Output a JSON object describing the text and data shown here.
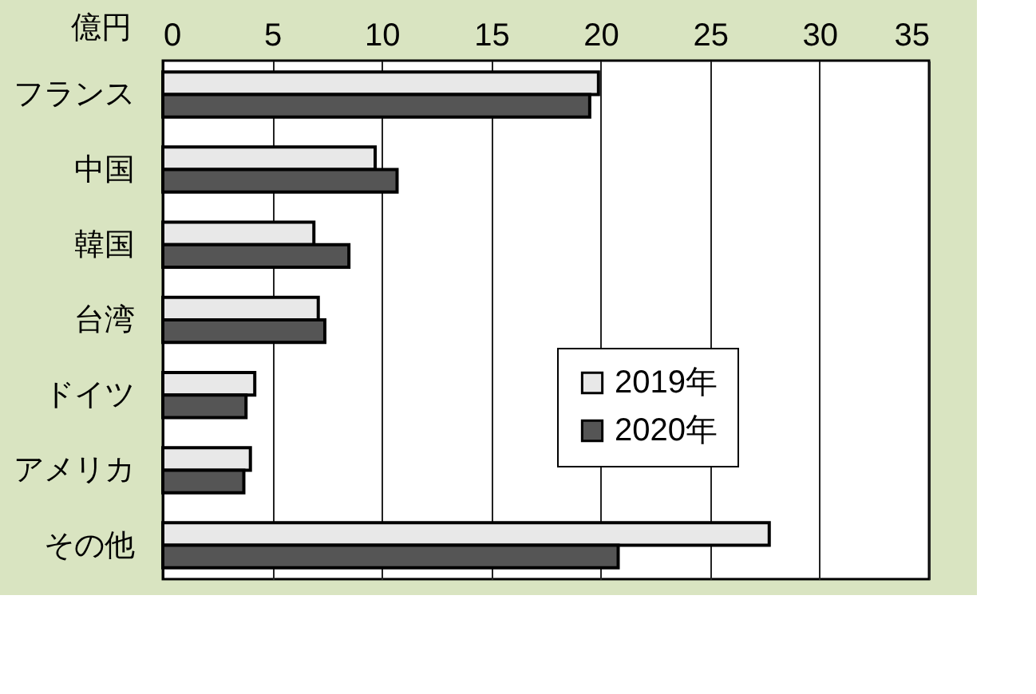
{
  "chart_data": {
    "type": "bar",
    "orientation": "horizontal",
    "xlabel": "億円",
    "categories": [
      "フランス",
      "中国",
      "韓国",
      "台湾",
      "ドイツ",
      "アメリカ",
      "その他"
    ],
    "series": [
      {
        "name": "2019年",
        "color": "#e8e8e8",
        "values": [
          19.9,
          9.7,
          6.9,
          7.1,
          4.2,
          4.0,
          27.7
        ]
      },
      {
        "name": "2020年",
        "color": "#555555",
        "values": [
          19.5,
          10.7,
          8.5,
          7.4,
          3.8,
          3.7,
          20.8
        ]
      }
    ],
    "xlim": [
      0,
      35
    ],
    "xticks": [
      0,
      5,
      10,
      15,
      20,
      25,
      30,
      35
    ],
    "grid": "x",
    "legend": "right"
  }
}
